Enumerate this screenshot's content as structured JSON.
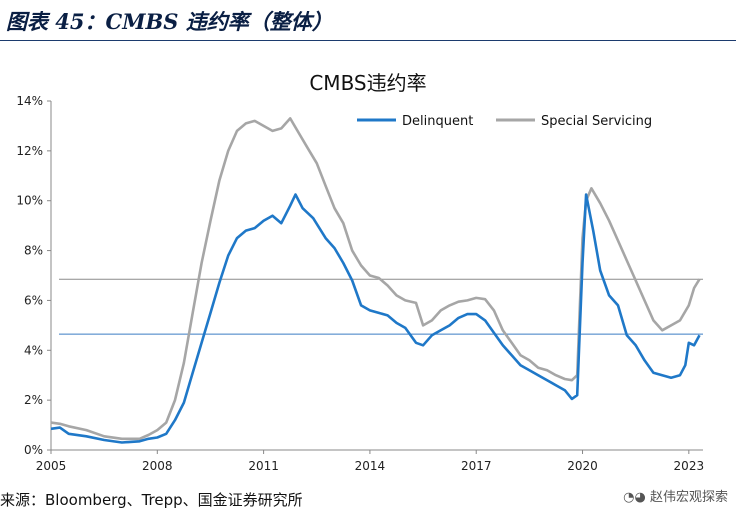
{
  "figure_title": "图表 45：CMBS 违约率（整体）",
  "source_text": "来源：Bloomberg、Trepp、国金证券研究所",
  "watermark_text": "赵伟宏观探索",
  "colors": {
    "delinquent": "#1f78c8",
    "special_servicing": "#a6a6a6",
    "ref_line_gray": "#8c8c8c",
    "ref_line_blue": "#3a7cc3"
  },
  "chart_data": {
    "type": "line",
    "title": "CMBS违约率",
    "xlim": [
      2005,
      2023.4
    ],
    "ylim": [
      0,
      14
    ],
    "x_ticks": [
      2005,
      2008,
      2011,
      2014,
      2017,
      2020,
      2023
    ],
    "x_tick_labels": [
      "2005",
      "2008",
      "2011",
      "2014",
      "2017",
      "2020",
      "2023"
    ],
    "y_ticks": [
      0,
      2,
      4,
      6,
      8,
      10,
      12,
      14
    ],
    "y_tick_labels": [
      "0%",
      "2%",
      "4%",
      "6%",
      "8%",
      "10%",
      "12%",
      "14%"
    ],
    "legend_position": "top-right",
    "reference_lines": [
      {
        "y": 6.85,
        "color": "gray"
      },
      {
        "y": 4.65,
        "color": "blue"
      }
    ],
    "series": [
      {
        "name": "Delinquent",
        "color": "#1f78c8",
        "points": [
          [
            2005.0,
            0.85
          ],
          [
            2005.25,
            0.9
          ],
          [
            2005.5,
            0.65
          ],
          [
            2006.0,
            0.55
          ],
          [
            2006.5,
            0.4
          ],
          [
            2007.0,
            0.3
          ],
          [
            2007.5,
            0.35
          ],
          [
            2007.75,
            0.45
          ],
          [
            2008.0,
            0.5
          ],
          [
            2008.25,
            0.65
          ],
          [
            2008.5,
            1.2
          ],
          [
            2008.75,
            1.9
          ],
          [
            2009.0,
            3.1
          ],
          [
            2009.25,
            4.3
          ],
          [
            2009.5,
            5.5
          ],
          [
            2009.75,
            6.7
          ],
          [
            2010.0,
            7.8
          ],
          [
            2010.25,
            8.5
          ],
          [
            2010.5,
            8.8
          ],
          [
            2010.75,
            8.9
          ],
          [
            2011.0,
            9.2
          ],
          [
            2011.25,
            9.4
          ],
          [
            2011.5,
            9.1
          ],
          [
            2011.75,
            9.8
          ],
          [
            2011.9,
            10.25
          ],
          [
            2012.1,
            9.7
          ],
          [
            2012.4,
            9.3
          ],
          [
            2012.75,
            8.5
          ],
          [
            2013.0,
            8.1
          ],
          [
            2013.25,
            7.5
          ],
          [
            2013.5,
            6.8
          ],
          [
            2013.75,
            5.8
          ],
          [
            2014.0,
            5.6
          ],
          [
            2014.25,
            5.5
          ],
          [
            2014.5,
            5.4
          ],
          [
            2014.75,
            5.1
          ],
          [
            2015.0,
            4.9
          ],
          [
            2015.3,
            4.3
          ],
          [
            2015.5,
            4.2
          ],
          [
            2015.75,
            4.6
          ],
          [
            2016.0,
            4.8
          ],
          [
            2016.25,
            5.0
          ],
          [
            2016.5,
            5.3
          ],
          [
            2016.75,
            5.45
          ],
          [
            2017.0,
            5.45
          ],
          [
            2017.25,
            5.2
          ],
          [
            2017.5,
            4.7
          ],
          [
            2017.75,
            4.2
          ],
          [
            2018.0,
            3.8
          ],
          [
            2018.25,
            3.4
          ],
          [
            2018.5,
            3.2
          ],
          [
            2018.75,
            3.0
          ],
          [
            2019.0,
            2.8
          ],
          [
            2019.25,
            2.6
          ],
          [
            2019.5,
            2.4
          ],
          [
            2019.7,
            2.05
          ],
          [
            2019.85,
            2.2
          ],
          [
            2020.0,
            7.5
          ],
          [
            2020.1,
            10.25
          ],
          [
            2020.3,
            8.8
          ],
          [
            2020.5,
            7.2
          ],
          [
            2020.75,
            6.2
          ],
          [
            2021.0,
            5.8
          ],
          [
            2021.25,
            4.6
          ],
          [
            2021.5,
            4.2
          ],
          [
            2021.75,
            3.6
          ],
          [
            2022.0,
            3.1
          ],
          [
            2022.25,
            3.0
          ],
          [
            2022.5,
            2.9
          ],
          [
            2022.75,
            3.0
          ],
          [
            2022.9,
            3.4
          ],
          [
            2023.0,
            4.3
          ],
          [
            2023.15,
            4.2
          ],
          [
            2023.3,
            4.6
          ]
        ]
      },
      {
        "name": "Special Servicing",
        "color": "#a6a6a6",
        "points": [
          [
            2005.0,
            1.1
          ],
          [
            2005.25,
            1.05
          ],
          [
            2005.5,
            0.95
          ],
          [
            2006.0,
            0.8
          ],
          [
            2006.5,
            0.55
          ],
          [
            2007.0,
            0.45
          ],
          [
            2007.5,
            0.45
          ],
          [
            2007.75,
            0.6
          ],
          [
            2008.0,
            0.8
          ],
          [
            2008.25,
            1.1
          ],
          [
            2008.5,
            2.0
          ],
          [
            2008.75,
            3.5
          ],
          [
            2009.0,
            5.5
          ],
          [
            2009.25,
            7.5
          ],
          [
            2009.5,
            9.2
          ],
          [
            2009.75,
            10.8
          ],
          [
            2010.0,
            12.0
          ],
          [
            2010.25,
            12.8
          ],
          [
            2010.5,
            13.1
          ],
          [
            2010.75,
            13.2
          ],
          [
            2011.0,
            13.0
          ],
          [
            2011.25,
            12.8
          ],
          [
            2011.5,
            12.9
          ],
          [
            2011.75,
            13.3
          ],
          [
            2012.0,
            12.7
          ],
          [
            2012.25,
            12.1
          ],
          [
            2012.5,
            11.5
          ],
          [
            2012.75,
            10.6
          ],
          [
            2013.0,
            9.7
          ],
          [
            2013.25,
            9.1
          ],
          [
            2013.5,
            8.0
          ],
          [
            2013.75,
            7.4
          ],
          [
            2014.0,
            7.0
          ],
          [
            2014.25,
            6.9
          ],
          [
            2014.5,
            6.6
          ],
          [
            2014.75,
            6.2
          ],
          [
            2015.0,
            6.0
          ],
          [
            2015.3,
            5.9
          ],
          [
            2015.5,
            5.0
          ],
          [
            2015.75,
            5.2
          ],
          [
            2016.0,
            5.6
          ],
          [
            2016.25,
            5.8
          ],
          [
            2016.5,
            5.95
          ],
          [
            2016.75,
            6.0
          ],
          [
            2017.0,
            6.1
          ],
          [
            2017.25,
            6.05
          ],
          [
            2017.5,
            5.6
          ],
          [
            2017.75,
            4.8
          ],
          [
            2018.0,
            4.3
          ],
          [
            2018.25,
            3.8
          ],
          [
            2018.5,
            3.6
          ],
          [
            2018.75,
            3.3
          ],
          [
            2019.0,
            3.2
          ],
          [
            2019.25,
            3.0
          ],
          [
            2019.5,
            2.85
          ],
          [
            2019.7,
            2.8
          ],
          [
            2019.85,
            3.0
          ],
          [
            2020.0,
            8.5
          ],
          [
            2020.1,
            10.0
          ],
          [
            2020.25,
            10.5
          ],
          [
            2020.5,
            9.9
          ],
          [
            2020.75,
            9.2
          ],
          [
            2021.0,
            8.4
          ],
          [
            2021.25,
            7.6
          ],
          [
            2021.5,
            6.8
          ],
          [
            2021.75,
            6.0
          ],
          [
            2022.0,
            5.2
          ],
          [
            2022.25,
            4.8
          ],
          [
            2022.5,
            5.0
          ],
          [
            2022.75,
            5.2
          ],
          [
            2023.0,
            5.8
          ],
          [
            2023.15,
            6.5
          ],
          [
            2023.3,
            6.85
          ]
        ]
      }
    ]
  }
}
